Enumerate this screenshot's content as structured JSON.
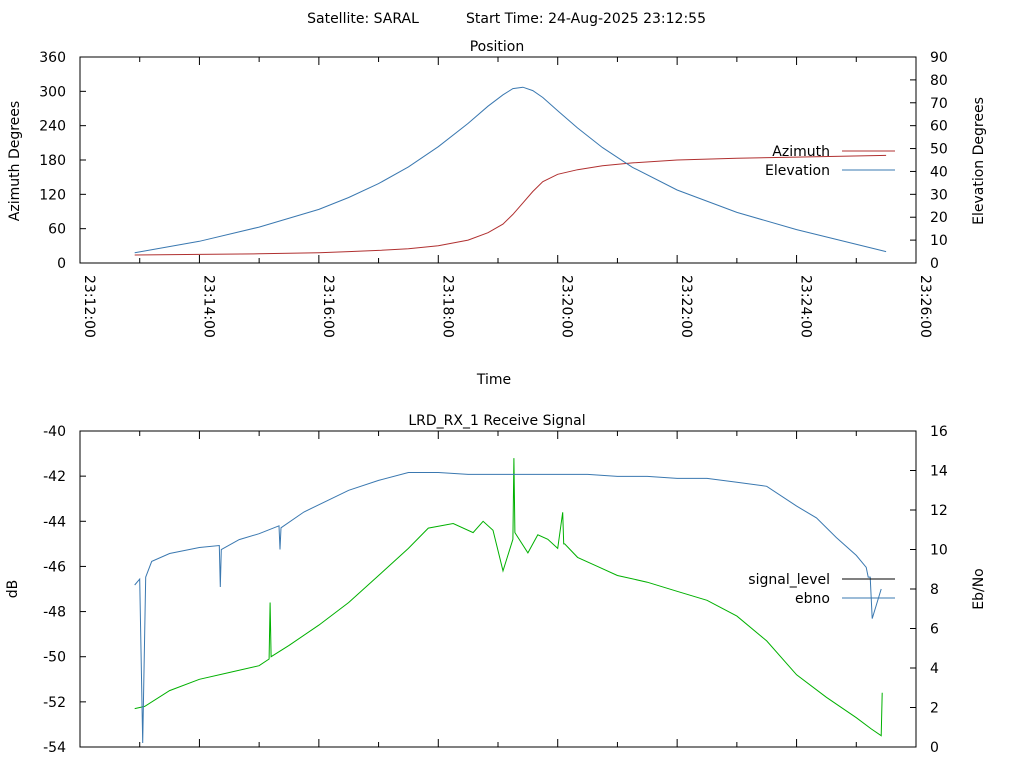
{
  "header": {
    "satellite": "Satellite: SARAL",
    "start_time": "Start Time: 24-Aug-2025 23:12:55"
  },
  "chart_data": [
    {
      "type": "line",
      "title": "Position",
      "xlabel": "Time",
      "ylabel": "Azimuth Degrees",
      "y2label": "Elevation Degrees",
      "x_ticks": [
        "23:12:00",
        "23:14:00",
        "23:16:00",
        "23:18:00",
        "23:20:00",
        "23:22:00",
        "23:24:00",
        "23:26:00"
      ],
      "xlim": [
        "23:12:00",
        "23:26:00"
      ],
      "ylim": [
        0,
        360
      ],
      "y_ticks": [
        "0",
        "60",
        "120",
        "180",
        "240",
        "300",
        "360"
      ],
      "y2lim": [
        0,
        90
      ],
      "y2_ticks": [
        "0",
        "10",
        "20",
        "30",
        "40",
        "50",
        "60",
        "70",
        "80",
        "90"
      ],
      "legend_position": "right",
      "series": [
        {
          "name": "Azimuth",
          "axis": "y",
          "color": "#b03030",
          "x": [
            "23:12:55",
            "23:14:00",
            "23:15:00",
            "23:16:00",
            "23:16:30",
            "23:17:00",
            "23:17:30",
            "23:18:00",
            "23:18:30",
            "23:18:50",
            "23:19:05",
            "23:19:15",
            "23:19:25",
            "23:19:35",
            "23:19:45",
            "23:20:00",
            "23:20:20",
            "23:20:45",
            "23:21:15",
            "23:22:00",
            "23:23:00",
            "23:24:00",
            "23:25:30"
          ],
          "values": [
            14,
            15,
            16,
            18,
            20,
            22,
            25,
            30,
            40,
            53,
            68,
            85,
            105,
            125,
            142,
            155,
            163,
            170,
            175,
            180,
            183,
            185,
            188
          ]
        },
        {
          "name": "Elevation",
          "axis": "y2",
          "color": "#3a78b0",
          "x": [
            "23:12:55",
            "23:14:00",
            "23:15:00",
            "23:16:00",
            "23:16:30",
            "23:17:00",
            "23:17:30",
            "23:18:00",
            "23:18:30",
            "23:18:50",
            "23:19:05",
            "23:19:15",
            "23:19:25",
            "23:19:35",
            "23:19:45",
            "23:20:00",
            "23:20:20",
            "23:20:45",
            "23:21:15",
            "23:22:00",
            "23:23:00",
            "23:24:00",
            "23:25:30"
          ],
          "values": [
            4.5,
            9.5,
            15.7,
            23.4,
            28.6,
            34.7,
            42.0,
            50.8,
            61.0,
            68.5,
            73.5,
            76.2,
            76.8,
            75.3,
            72.3,
            66.5,
            59.0,
            50.4,
            41.8,
            31.9,
            22.1,
            14.6,
            5.0
          ]
        }
      ]
    },
    {
      "type": "line",
      "title": "LRD_RX_1 Receive Signal",
      "ylabel": "dB",
      "y2label": "Eb/No",
      "xlim": [
        "23:12:00",
        "23:26:00"
      ],
      "ylim": [
        -54,
        -40
      ],
      "y_ticks": [
        "-54",
        "-52",
        "-50",
        "-48",
        "-46",
        "-44",
        "-42",
        "-40"
      ],
      "y2lim": [
        0,
        16
      ],
      "y2_ticks": [
        "0",
        "2",
        "4",
        "6",
        "8",
        "10",
        "12",
        "14",
        "16"
      ],
      "legend_position": "right",
      "legend": [
        {
          "name": "signal_level",
          "color": "#000000"
        },
        {
          "name": "ebno",
          "color": "#3a78b0"
        }
      ],
      "series": [
        {
          "name": "signal_level",
          "axis": "y",
          "color": "#00b000",
          "x": [
            "23:12:55",
            "23:13:05",
            "23:13:30",
            "23:14:00",
            "23:14:30",
            "23:15:00",
            "23:15:10",
            "23:15:11",
            "23:15:12",
            "23:15:30",
            "23:16:00",
            "23:16:30",
            "23:17:00",
            "23:17:30",
            "23:17:50",
            "23:18:15",
            "23:18:35",
            "23:18:45",
            "23:18:55",
            "23:19:05",
            "23:19:15",
            "23:19:16",
            "23:19:17",
            "23:19:30",
            "23:19:40",
            "23:19:50",
            "23:20:00",
            "23:20:05",
            "23:20:06",
            "23:20:07",
            "23:20:20",
            "23:20:40",
            "23:21:00",
            "23:21:30",
            "23:22:00",
            "23:22:30",
            "23:23:00",
            "23:23:30",
            "23:24:00",
            "23:24:30",
            "23:25:00",
            "23:25:15",
            "23:25:25",
            "23:25:26"
          ],
          "values": [
            -52.3,
            -52.2,
            -51.5,
            -51.0,
            -50.7,
            -50.4,
            -50.1,
            -47.6,
            -50.0,
            -49.5,
            -48.6,
            -47.6,
            -46.4,
            -45.2,
            -44.3,
            -44.1,
            -44.5,
            -44.0,
            -44.4,
            -46.2,
            -44.8,
            -41.2,
            -44.5,
            -45.4,
            -44.6,
            -44.8,
            -45.2,
            -43.6,
            -45.0,
            -45.0,
            -45.6,
            -46.0,
            -46.4,
            -46.7,
            -47.1,
            -47.5,
            -48.2,
            -49.3,
            -50.8,
            -51.8,
            -52.7,
            -53.2,
            -53.5,
            -51.6
          ]
        },
        {
          "name": "ebno",
          "axis": "y2",
          "color": "#3a78b0",
          "x": [
            "23:12:55",
            "23:13:00",
            "23:13:03",
            "23:13:06",
            "23:13:12",
            "23:13:30",
            "23:14:00",
            "23:14:20",
            "23:14:21",
            "23:14:22",
            "23:14:40",
            "23:15:00",
            "23:15:20",
            "23:15:21",
            "23:15:22",
            "23:15:45",
            "23:16:30",
            "23:17:00",
            "23:17:30",
            "23:18:00",
            "23:18:30",
            "23:19:00",
            "23:19:30",
            "23:20:00",
            "23:20:30",
            "23:21:00",
            "23:21:30",
            "23:22:00",
            "23:22:30",
            "23:23:00",
            "23:23:30",
            "23:24:00",
            "23:24:20",
            "23:24:40",
            "23:25:00",
            "23:25:10",
            "23:25:12",
            "23:25:14",
            "23:25:16",
            "23:25:25"
          ],
          "values": [
            8.2,
            8.5,
            0.2,
            8.6,
            9.4,
            9.8,
            10.1,
            10.2,
            8.1,
            10.0,
            10.5,
            10.8,
            11.2,
            10.0,
            11.1,
            11.9,
            13.0,
            13.5,
            13.9,
            13.9,
            13.8,
            13.8,
            13.8,
            13.8,
            13.8,
            13.7,
            13.7,
            13.6,
            13.6,
            13.4,
            13.2,
            12.2,
            11.6,
            10.6,
            9.7,
            9.1,
            8.6,
            8.6,
            6.5,
            8.0
          ]
        }
      ]
    }
  ]
}
